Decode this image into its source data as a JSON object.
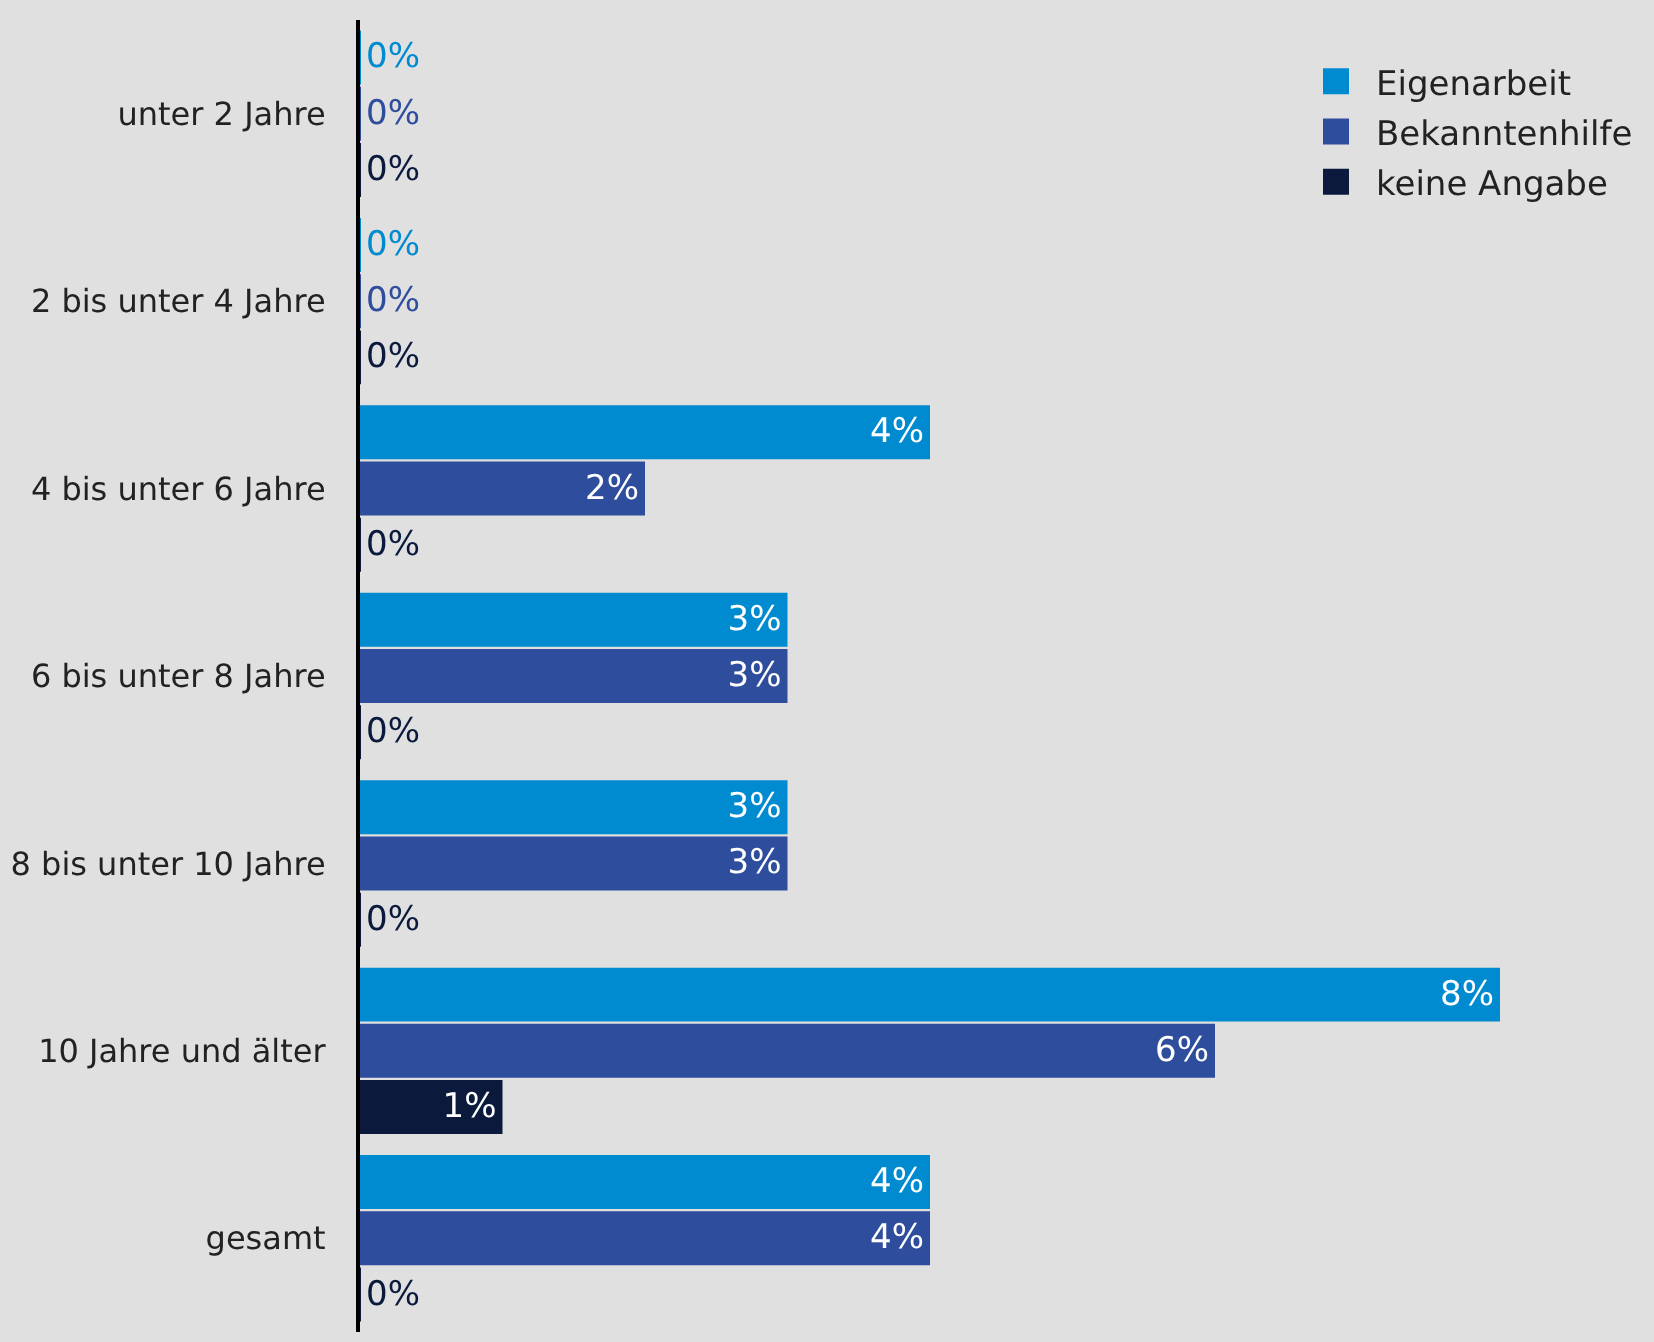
{
  "chart_data": {
    "type": "bar",
    "orientation": "horizontal",
    "categories": [
      "unter 2 Jahre",
      "2 bis unter 4 Jahre",
      "4 bis unter 6 Jahre",
      "6 bis unter 8 Jahre",
      "8 bis unter 10 Jahre",
      "10 Jahre und älter",
      "gesamt"
    ],
    "series": [
      {
        "name": "Eigenarbeit",
        "color": "#008ad0",
        "values": [
          0,
          0,
          4,
          3,
          3,
          8,
          4
        ],
        "value_labels": [
          "0%",
          "0%",
          "4%",
          "3%",
          "3%",
          "8%",
          "4%"
        ]
      },
      {
        "name": "Bekanntenhilfe",
        "color": "#2e4d9c",
        "values": [
          0,
          0,
          2,
          3,
          3,
          6,
          4
        ],
        "value_labels": [
          "0%",
          "0%",
          "2%",
          "3%",
          "3%",
          "6%",
          "4%"
        ]
      },
      {
        "name": "keine Angabe",
        "color": "#0b1a3c",
        "values": [
          0,
          0,
          0,
          0,
          0,
          1,
          0
        ],
        "value_labels": [
          "0%",
          "0%",
          "0%",
          "0%",
          "0%",
          "1%",
          "0%"
        ]
      }
    ],
    "grid": false,
    "legend": "top right"
  }
}
